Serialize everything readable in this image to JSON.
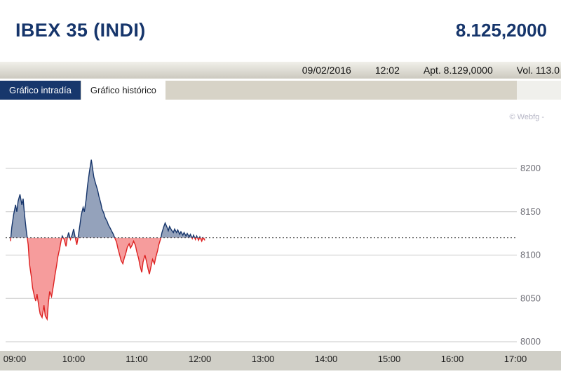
{
  "header": {
    "title": "IBEX 35 (INDI)",
    "last_price": "8.125,2000"
  },
  "info_bar": {
    "date": "09/02/2016",
    "time": "12:02",
    "open_label": "Apt.",
    "open_value": "8.129,0000",
    "volume_label": "Vol.",
    "volume_value": "113.0"
  },
  "tabs": [
    {
      "id": "intraday",
      "label": "Gráfico intradía",
      "active": true
    },
    {
      "id": "historical",
      "label": "Gráfico histórico",
      "active": false
    }
  ],
  "chart_data": {
    "type": "area",
    "title": "IBEX 35 intraday price",
    "watermark": "© Webfg -",
    "xlim": [
      9,
      17
    ],
    "ylim": [
      8000,
      8225
    ],
    "yticks": [
      8000,
      8050,
      8100,
      8150,
      8200
    ],
    "xticks": [
      9,
      10,
      11,
      12,
      13,
      14,
      15,
      16,
      17
    ],
    "xtick_labels": [
      "09:00",
      "10:00",
      "11:00",
      "12:00",
      "13:00",
      "14:00",
      "15:00",
      "16:00",
      "17:00"
    ],
    "reference_level": 8120,
    "grid": true,
    "legend": false,
    "colors": {
      "above_fill": "#94a2bb",
      "above_line": "#16356b",
      "below_fill": "#f69c9c",
      "below_line": "#dd2222",
      "grid": "#c8c8c8",
      "reference": "#444444",
      "y_label": "#6e6e76",
      "x_label": "#1c1c1c",
      "watermark": "#b4b4c4",
      "strip": "#d0cfc7"
    },
    "points": [
      [
        9.0,
        8116
      ],
      [
        9.02,
        8132
      ],
      [
        9.05,
        8147
      ],
      [
        9.08,
        8158
      ],
      [
        9.1,
        8150
      ],
      [
        9.12,
        8162
      ],
      [
        9.15,
        8170
      ],
      [
        9.18,
        8158
      ],
      [
        9.2,
        8165
      ],
      [
        9.22,
        8148
      ],
      [
        9.25,
        8128
      ],
      [
        9.28,
        8112
      ],
      [
        9.3,
        8090
      ],
      [
        9.33,
        8075
      ],
      [
        9.35,
        8062
      ],
      [
        9.38,
        8052
      ],
      [
        9.4,
        8047
      ],
      [
        9.42,
        8055
      ],
      [
        9.45,
        8040
      ],
      [
        9.47,
        8032
      ],
      [
        9.5,
        8028
      ],
      [
        9.53,
        8042
      ],
      [
        9.55,
        8030
      ],
      [
        9.58,
        8026
      ],
      [
        9.6,
        8045
      ],
      [
        9.62,
        8058
      ],
      [
        9.65,
        8052
      ],
      [
        9.68,
        8065
      ],
      [
        9.7,
        8075
      ],
      [
        9.73,
        8088
      ],
      [
        9.75,
        8098
      ],
      [
        9.78,
        8108
      ],
      [
        9.8,
        8116
      ],
      [
        9.82,
        8122
      ],
      [
        9.85,
        8118
      ],
      [
        9.88,
        8110
      ],
      [
        9.9,
        8120
      ],
      [
        9.92,
        8126
      ],
      [
        9.95,
        8118
      ],
      [
        9.98,
        8124
      ],
      [
        10.0,
        8130
      ],
      [
        10.02,
        8122
      ],
      [
        10.05,
        8112
      ],
      [
        10.07,
        8120
      ],
      [
        10.1,
        8135
      ],
      [
        10.12,
        8146
      ],
      [
        10.15,
        8155
      ],
      [
        10.17,
        8150
      ],
      [
        10.2,
        8165
      ],
      [
        10.22,
        8180
      ],
      [
        10.25,
        8196
      ],
      [
        10.28,
        8210
      ],
      [
        10.3,
        8200
      ],
      [
        10.32,
        8190
      ],
      [
        10.35,
        8182
      ],
      [
        10.38,
        8175
      ],
      [
        10.4,
        8168
      ],
      [
        10.43,
        8160
      ],
      [
        10.45,
        8153
      ],
      [
        10.48,
        8148
      ],
      [
        10.5,
        8143
      ],
      [
        10.53,
        8139
      ],
      [
        10.55,
        8135
      ],
      [
        10.58,
        8131
      ],
      [
        10.6,
        8128
      ],
      [
        10.63,
        8124
      ],
      [
        10.65,
        8120
      ],
      [
        10.68,
        8115
      ],
      [
        10.7,
        8108
      ],
      [
        10.73,
        8100
      ],
      [
        10.75,
        8094
      ],
      [
        10.78,
        8090
      ],
      [
        10.8,
        8096
      ],
      [
        10.83,
        8103
      ],
      [
        10.85,
        8109
      ],
      [
        10.88,
        8113
      ],
      [
        10.9,
        8108
      ],
      [
        10.93,
        8112
      ],
      [
        10.95,
        8116
      ],
      [
        10.98,
        8111
      ],
      [
        11.0,
        8104
      ],
      [
        11.03,
        8096
      ],
      [
        11.05,
        8088
      ],
      [
        11.08,
        8080
      ],
      [
        11.1,
        8092
      ],
      [
        11.13,
        8100
      ],
      [
        11.15,
        8094
      ],
      [
        11.18,
        8084
      ],
      [
        11.2,
        8078
      ],
      [
        11.23,
        8088
      ],
      [
        11.25,
        8095
      ],
      [
        11.28,
        8090
      ],
      [
        11.3,
        8097
      ],
      [
        11.33,
        8105
      ],
      [
        11.35,
        8112
      ],
      [
        11.38,
        8119
      ],
      [
        11.4,
        8126
      ],
      [
        11.43,
        8133
      ],
      [
        11.45,
        8137
      ],
      [
        11.48,
        8132
      ],
      [
        11.5,
        8128
      ],
      [
        11.52,
        8133
      ],
      [
        11.55,
        8129
      ],
      [
        11.58,
        8126
      ],
      [
        11.6,
        8130
      ],
      [
        11.63,
        8126
      ],
      [
        11.65,
        8129
      ],
      [
        11.68,
        8124
      ],
      [
        11.7,
        8127
      ],
      [
        11.73,
        8123
      ],
      [
        11.75,
        8126
      ],
      [
        11.78,
        8122
      ],
      [
        11.8,
        8125
      ],
      [
        11.83,
        8121
      ],
      [
        11.85,
        8124
      ],
      [
        11.88,
        8119
      ],
      [
        11.9,
        8123
      ],
      [
        11.93,
        8118
      ],
      [
        11.95,
        8122
      ],
      [
        11.98,
        8117
      ],
      [
        12.0,
        8121
      ],
      [
        12.03,
        8116
      ],
      [
        12.05,
        8120
      ],
      [
        12.08,
        8117
      ]
    ]
  }
}
